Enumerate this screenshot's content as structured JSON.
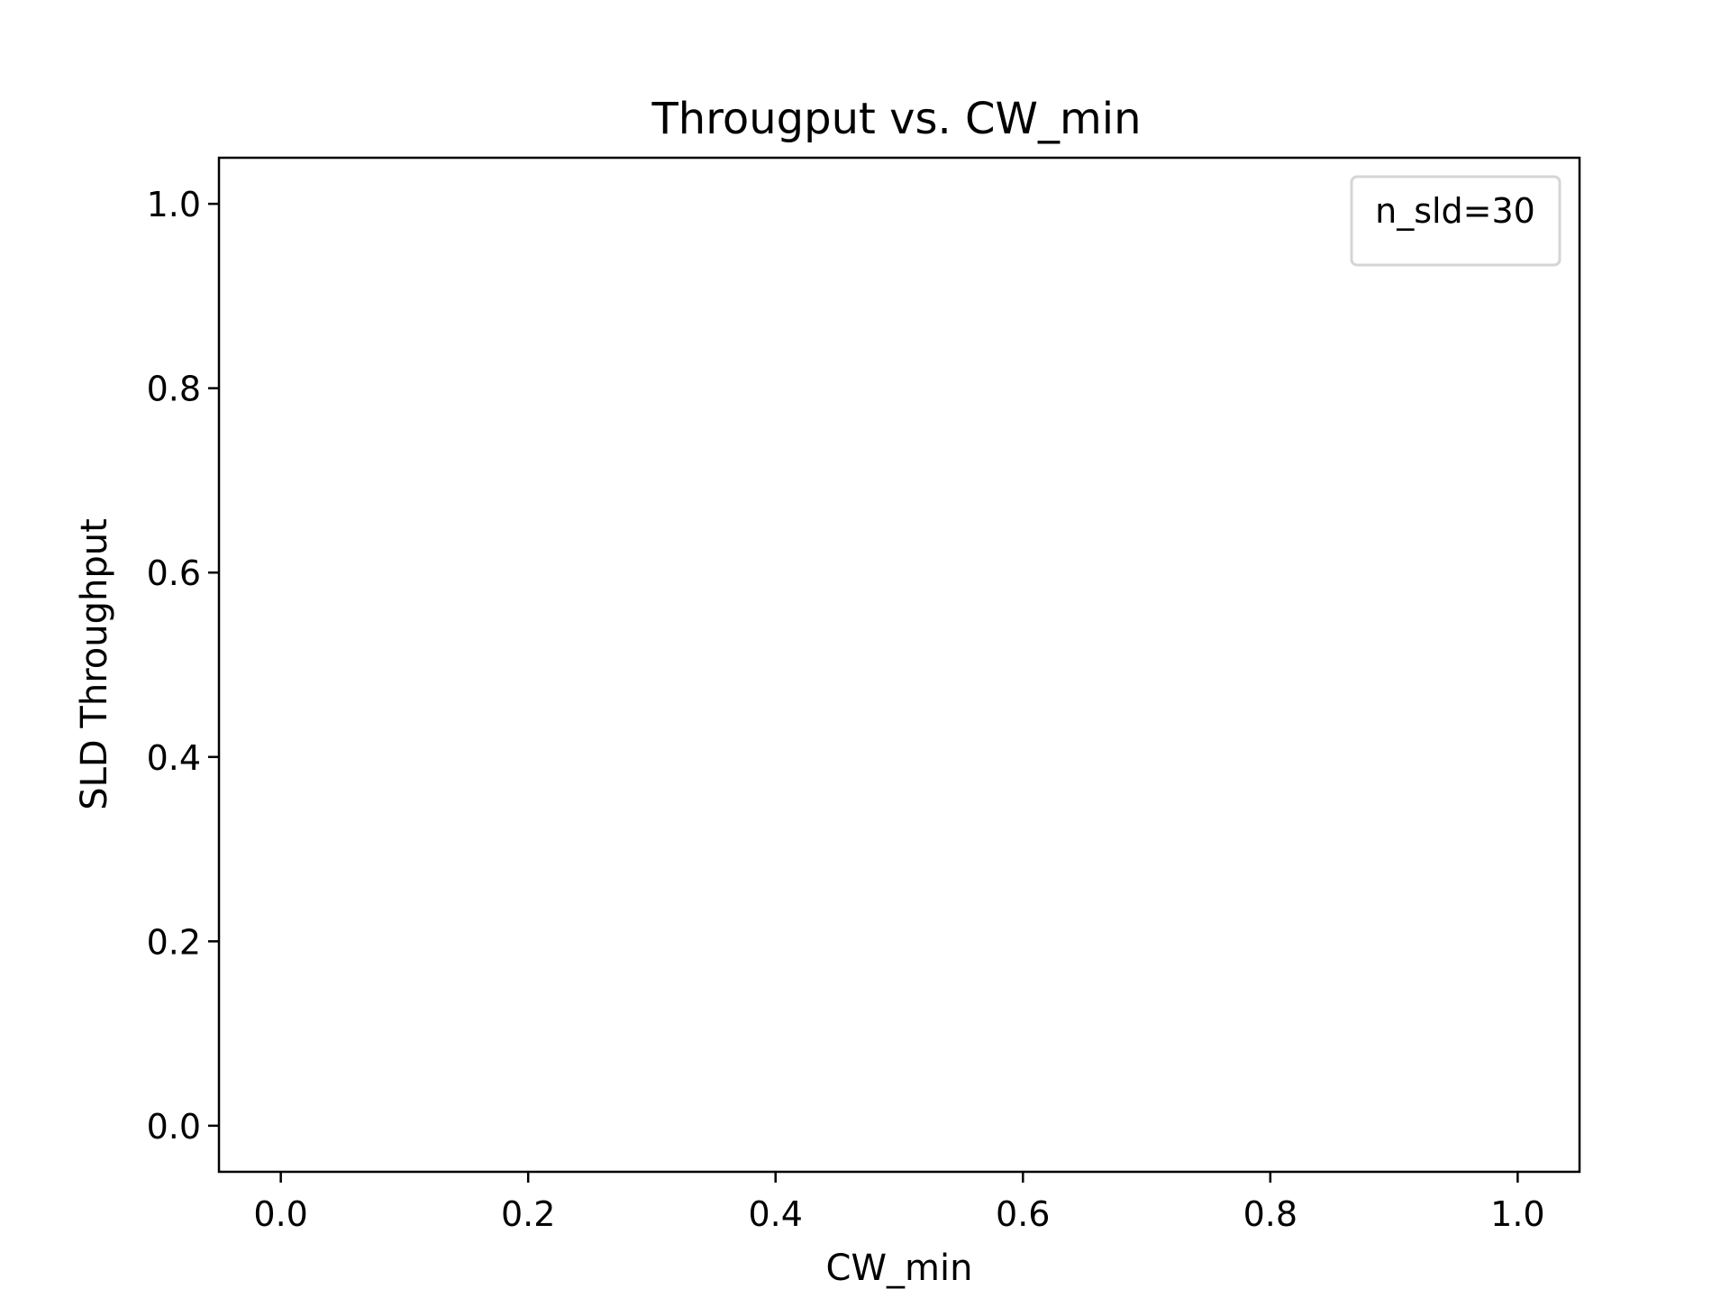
{
  "chart_data": {
    "type": "line",
    "title": "Througput vs. CW_min",
    "xlabel": "CW_min",
    "ylabel": "SLD Throughput",
    "xlim": [
      -0.05,
      1.05
    ],
    "ylim": [
      -0.05,
      1.05
    ],
    "xticks": [
      0.0,
      0.2,
      0.4,
      0.6,
      0.8,
      1.0
    ],
    "xtick_labels": [
      "0.0",
      "0.2",
      "0.4",
      "0.6",
      "0.8",
      "1.0"
    ],
    "yticks": [
      0.0,
      0.2,
      0.4,
      0.6,
      0.8,
      1.0
    ],
    "ytick_labels": [
      "0.0",
      "0.2",
      "0.4",
      "0.6",
      "0.8",
      "1.0"
    ],
    "series": [
      {
        "name": "n_sld=30",
        "x": [],
        "y": []
      }
    ],
    "legend": {
      "position": "top-right",
      "entries": [
        "n_sld=30"
      ]
    },
    "grid": false
  }
}
